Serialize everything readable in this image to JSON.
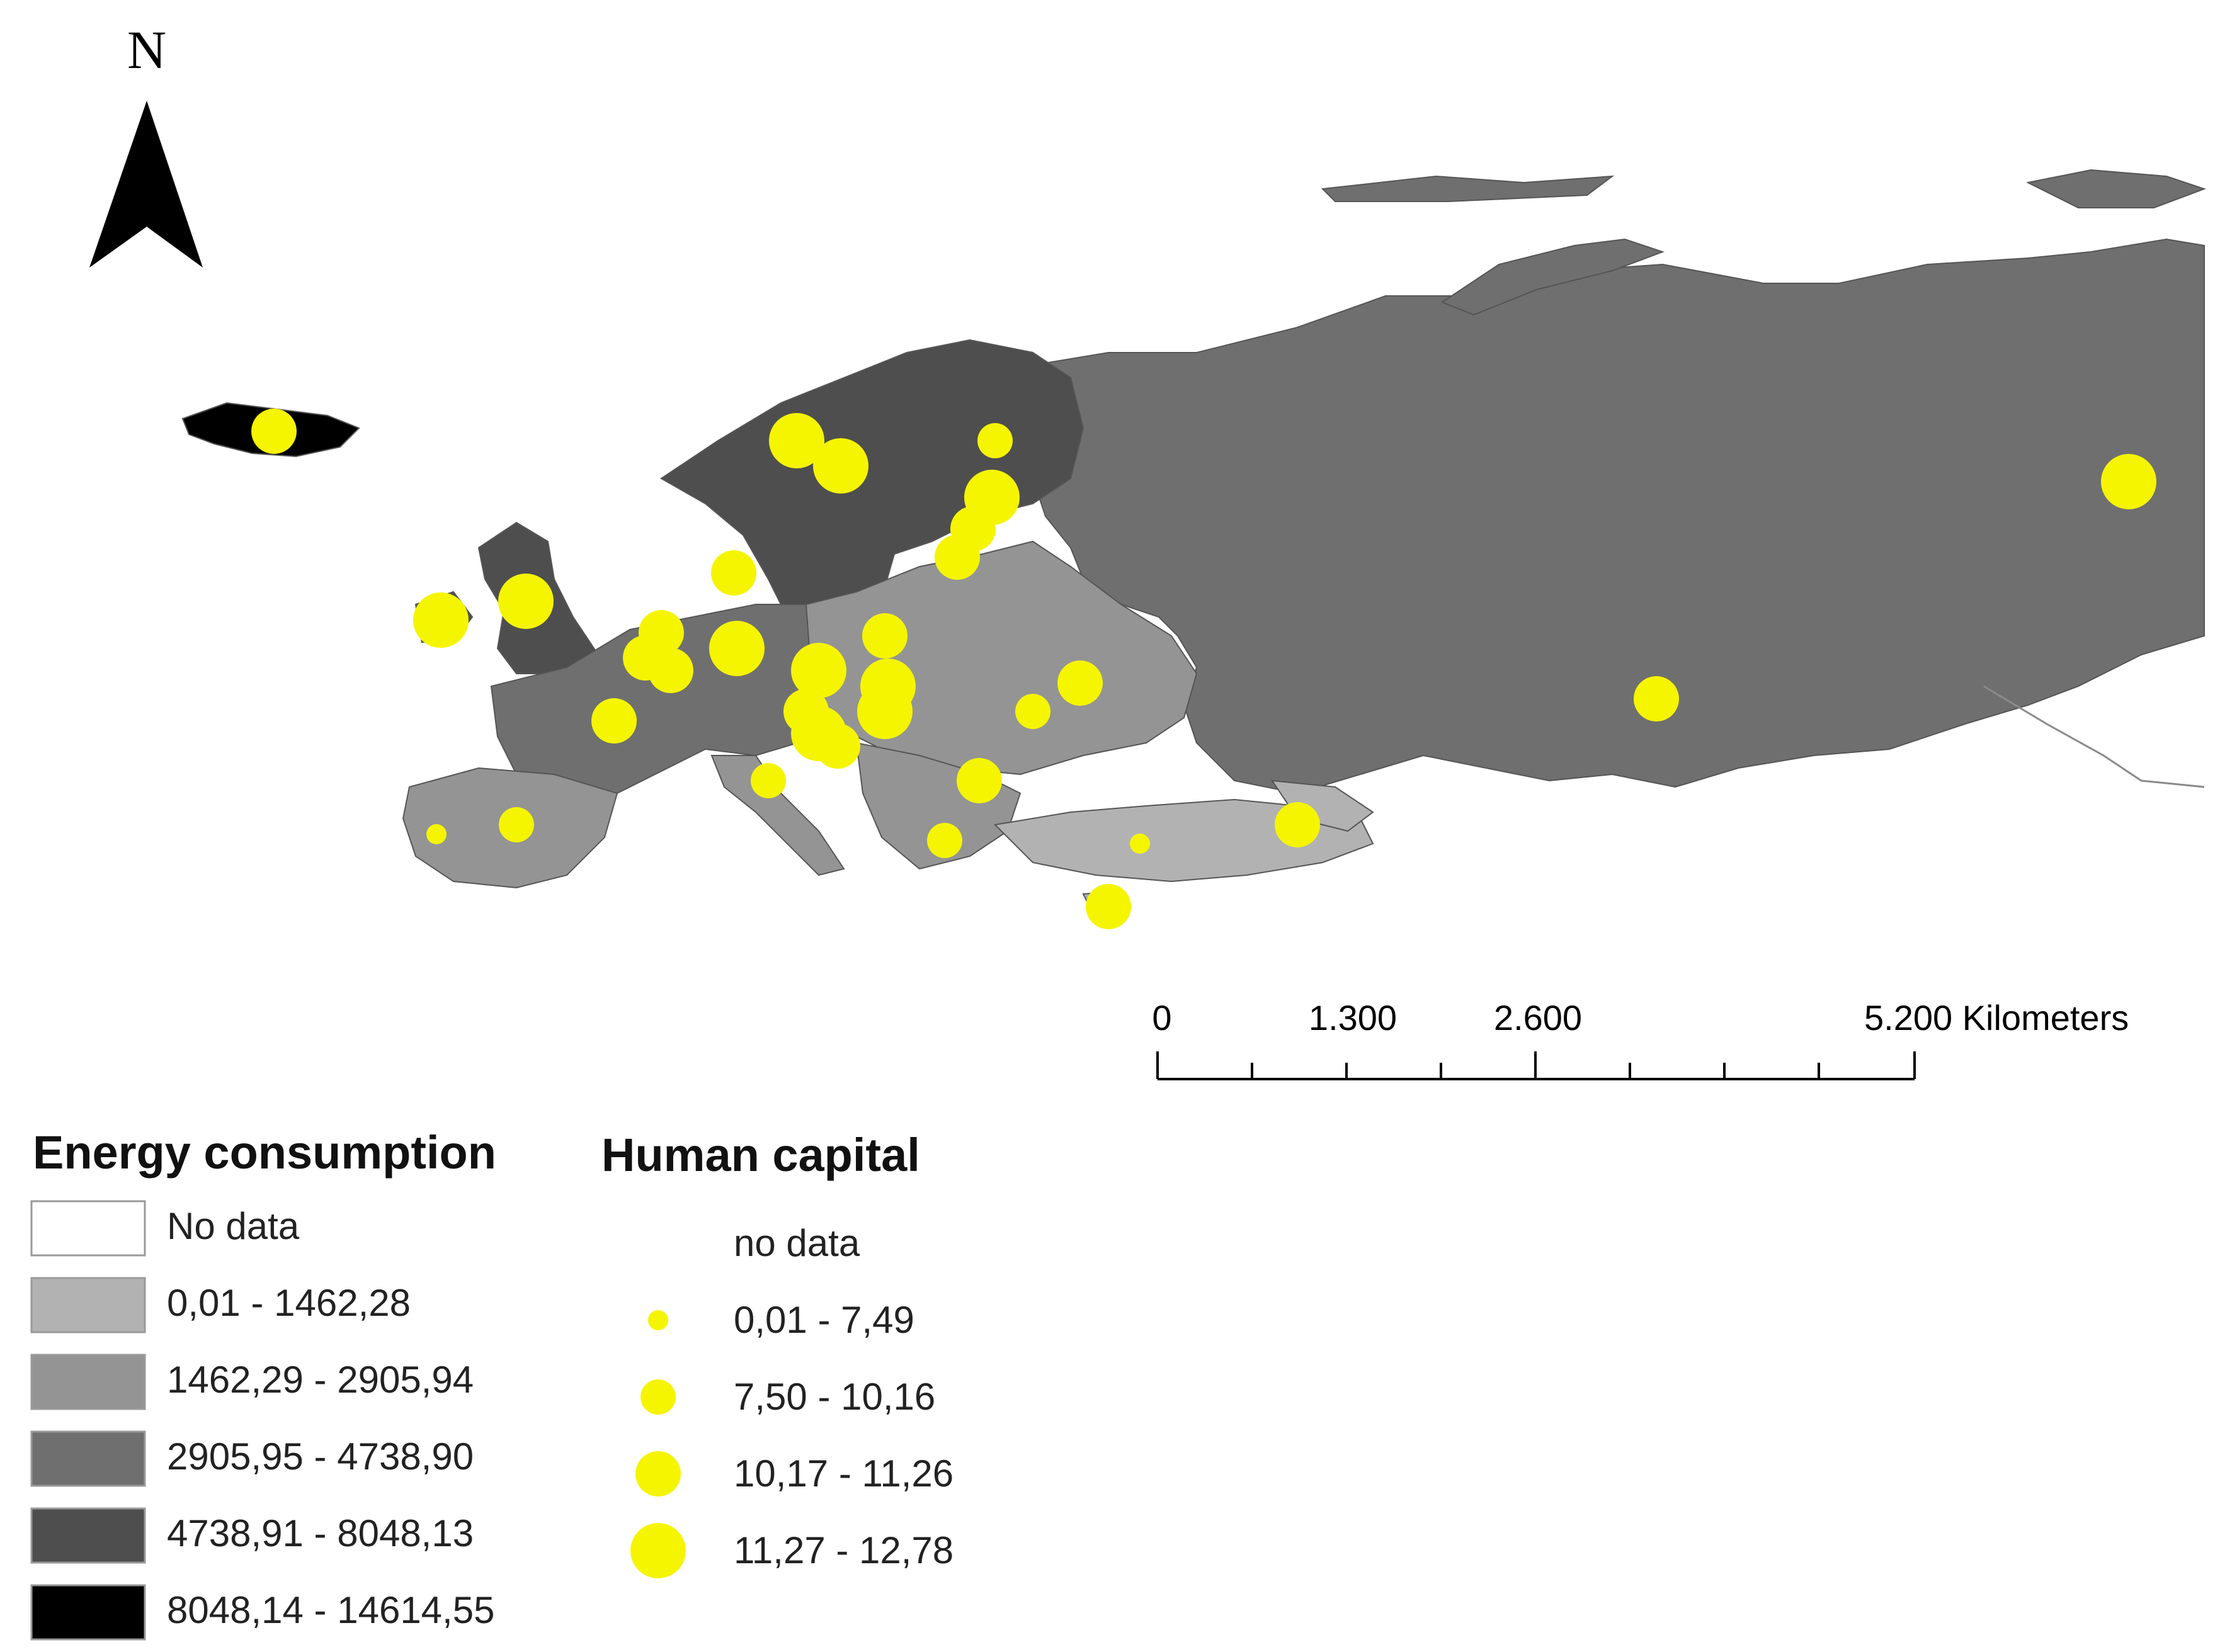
{
  "north_arrow": {
    "label": "N"
  },
  "scale_bar": {
    "ticks": [
      "0",
      "1.300",
      "2.600",
      "5.200 Kilometers"
    ]
  },
  "legend_energy": {
    "title": "Energy consumption",
    "classes": [
      {
        "label": "No data",
        "color": "#ffffff"
      },
      {
        "label": "0,01 - 1462,28",
        "color": "#b2b2b2"
      },
      {
        "label": "1462,29 - 2905,94",
        "color": "#949494"
      },
      {
        "label": "2905,95 - 4738,90",
        "color": "#6f6f6f"
      },
      {
        "label": "4738,91 - 8048,13",
        "color": "#4e4e4e"
      },
      {
        "label": "8048,14 - 14614,55",
        "color": "#000000"
      }
    ]
  },
  "legend_human_capital": {
    "title": "Human capital",
    "symbol_color": "#f5f500",
    "classes": [
      {
        "label": "no data",
        "size_class": 0
      },
      {
        "label": "0,01 - 7,49",
        "size_class": 1
      },
      {
        "label": "7,50 - 10,16",
        "size_class": 2
      },
      {
        "label": "10,17 - 11,26",
        "size_class": 3
      },
      {
        "label": "11,27 - 12,78",
        "size_class": 4
      }
    ]
  },
  "colors": {
    "russia": "#6f6f6f",
    "nordic": "#4e4e4e",
    "iceland": "#000000",
    "central": "#949494",
    "light": "#b2b2b2",
    "border_line": "#8a8a8a",
    "dot": "#f5f500"
  }
}
